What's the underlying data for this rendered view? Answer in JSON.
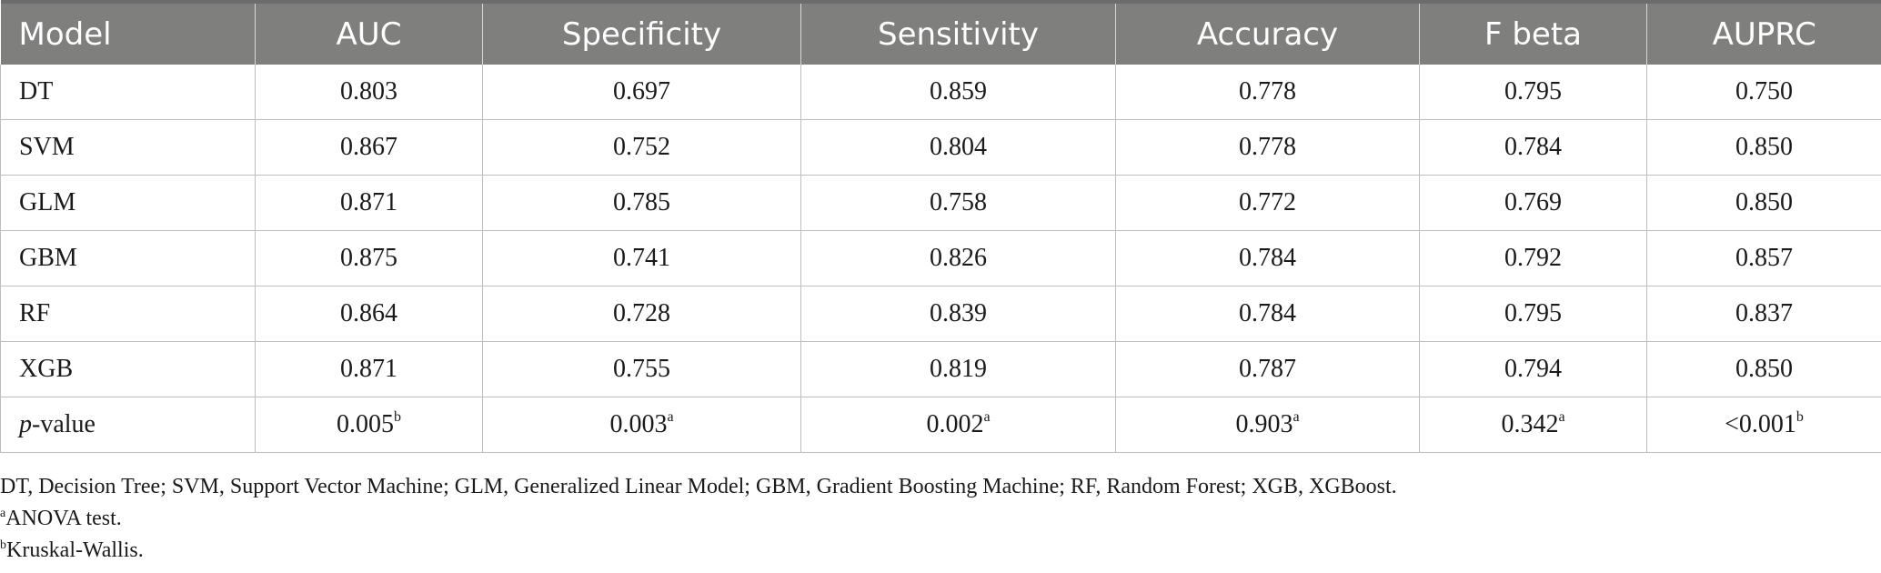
{
  "table": {
    "headers": [
      "Model",
      "AUC",
      "Specificity",
      "Sensitivity",
      "Accuracy",
      "F beta",
      "AUPRC"
    ],
    "rows": [
      [
        "DT",
        "0.803",
        "0.697",
        "0.859",
        "0.778",
        "0.795",
        "0.750"
      ],
      [
        "SVM",
        "0.867",
        "0.752",
        "0.804",
        "0.778",
        "0.784",
        "0.850"
      ],
      [
        "GLM",
        "0.871",
        "0.785",
        "0.758",
        "0.772",
        "0.769",
        "0.850"
      ],
      [
        "GBM",
        "0.875",
        "0.741",
        "0.826",
        "0.784",
        "0.792",
        "0.857"
      ],
      [
        "RF",
        "0.864",
        "0.728",
        "0.839",
        "0.784",
        "0.795",
        "0.837"
      ],
      [
        "XGB",
        "0.871",
        "0.755",
        "0.819",
        "0.787",
        "0.794",
        "0.850"
      ]
    ],
    "pvalue_row": {
      "label_italic": "p",
      "label_rest": "-value",
      "values": [
        {
          "value": "0.005",
          "sup": "b"
        },
        {
          "value": "0.003",
          "sup": "a"
        },
        {
          "value": "0.002",
          "sup": "a"
        },
        {
          "value": "0.903",
          "sup": "a"
        },
        {
          "value": "0.342",
          "sup": "a"
        },
        {
          "value": "<0.001",
          "sup": "b"
        }
      ]
    }
  },
  "footnotes": {
    "abbreviations": "DT, Decision Tree; SVM, Support Vector Machine; GLM, Generalized Linear Model; GBM, Gradient Boosting Machine; RF, Random Forest; XGB, XGBoost.",
    "note_a": {
      "mark": "a",
      "text": "ANOVA test."
    },
    "note_b": {
      "mark": "b",
      "text": "Kruskal-Wallis."
    }
  },
  "colors": {
    "header_bg": "#7f7f7e",
    "header_text": "#ffffff",
    "grid": "#bdbdbd"
  }
}
